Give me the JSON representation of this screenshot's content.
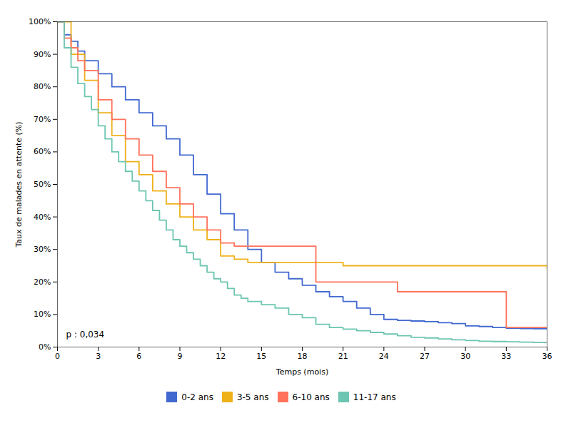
{
  "chart_data": {
    "type": "step",
    "xlabel": "Temps (mois)",
    "ylabel": "Taux de malades en attente (%)",
    "xlim": [
      0,
      36
    ],
    "ylim": [
      0,
      1.0
    ],
    "xticks": [
      0,
      3,
      6,
      9,
      12,
      15,
      18,
      21,
      24,
      27,
      30,
      33,
      36
    ],
    "yticks": [
      {
        "value": 0,
        "label": "0%"
      },
      {
        "value": 0.1,
        "label": "10%"
      },
      {
        "value": 0.2,
        "label": "20%"
      },
      {
        "value": 0.3,
        "label": "30%"
      },
      {
        "value": 0.4,
        "label": "40%"
      },
      {
        "value": 0.5,
        "label": "50%"
      },
      {
        "value": 0.6,
        "label": "60%"
      },
      {
        "value": 0.7,
        "label": "70%"
      },
      {
        "value": 0.8,
        "label": "80%"
      },
      {
        "value": 0.9,
        "label": "90%"
      },
      {
        "value": 1.0,
        "label": "100%"
      }
    ],
    "annotation": "p : 0,034",
    "grid": false,
    "legend": "bottom",
    "series": [
      {
        "name": "0-2 ans",
        "x": [
          0,
          0.5,
          1,
          1.5,
          2,
          3,
          4,
          5,
          6,
          7,
          8,
          9,
          10,
          11,
          12,
          13,
          14,
          15,
          16,
          17,
          18,
          19,
          20,
          21,
          22,
          23,
          24,
          25,
          26,
          27,
          28,
          29,
          30,
          31,
          32,
          33,
          34,
          35,
          36
        ],
        "values": [
          1.0,
          0.96,
          0.94,
          0.91,
          0.88,
          0.84,
          0.8,
          0.76,
          0.72,
          0.68,
          0.64,
          0.59,
          0.53,
          0.47,
          0.41,
          0.36,
          0.3,
          0.26,
          0.23,
          0.21,
          0.19,
          0.17,
          0.155,
          0.14,
          0.12,
          0.1,
          0.085,
          0.082,
          0.08,
          0.078,
          0.075,
          0.072,
          0.065,
          0.063,
          0.06,
          0.058,
          0.057,
          0.056,
          0.055
        ]
      },
      {
        "name": "3-5 ans",
        "x": [
          0,
          1,
          2,
          3,
          4,
          5,
          6,
          7,
          8,
          9,
          10,
          11,
          12,
          13,
          14,
          15,
          16,
          17,
          18,
          19,
          20,
          21,
          22,
          23,
          24,
          36
        ],
        "values": [
          1.0,
          0.9,
          0.82,
          0.72,
          0.65,
          0.57,
          0.53,
          0.48,
          0.44,
          0.4,
          0.36,
          0.33,
          0.28,
          0.27,
          0.26,
          0.26,
          0.26,
          0.26,
          0.26,
          0.26,
          0.26,
          0.25,
          0.25,
          0.25,
          0.25,
          0.24
        ]
      },
      {
        "name": "6-10 ans",
        "x": [
          0,
          0.5,
          1,
          1.5,
          2,
          3,
          4,
          5,
          6,
          7,
          8,
          9,
          10,
          11,
          12,
          13,
          14,
          15,
          16,
          17,
          18,
          19,
          20,
          21,
          22,
          23,
          24,
          25,
          26,
          27,
          28,
          29,
          30,
          31,
          32,
          33,
          34,
          35,
          36
        ],
        "values": [
          1.0,
          0.95,
          0.92,
          0.88,
          0.85,
          0.76,
          0.7,
          0.64,
          0.59,
          0.54,
          0.49,
          0.44,
          0.4,
          0.36,
          0.32,
          0.31,
          0.31,
          0.31,
          0.31,
          0.31,
          0.31,
          0.2,
          0.2,
          0.2,
          0.2,
          0.2,
          0.2,
          0.17,
          0.17,
          0.17,
          0.17,
          0.17,
          0.17,
          0.17,
          0.17,
          0.06,
          0.06,
          0.06,
          0.06
        ]
      },
      {
        "name": "11-17 ans",
        "x": [
          0,
          0.5,
          1,
          1.5,
          2,
          2.5,
          3,
          3.5,
          4,
          4.5,
          5,
          5.5,
          6,
          6.5,
          7,
          7.5,
          8,
          8.5,
          9,
          9.5,
          10,
          10.5,
          11,
          11.5,
          12,
          12.5,
          13,
          13.5,
          14,
          15,
          16,
          17,
          18,
          19,
          20,
          21,
          22,
          23,
          24,
          25,
          26,
          27,
          28,
          29,
          30,
          31,
          32,
          33,
          34,
          35,
          36
        ],
        "values": [
          1.0,
          0.92,
          0.86,
          0.81,
          0.77,
          0.73,
          0.68,
          0.64,
          0.6,
          0.57,
          0.54,
          0.51,
          0.48,
          0.45,
          0.42,
          0.39,
          0.36,
          0.33,
          0.31,
          0.29,
          0.27,
          0.25,
          0.23,
          0.21,
          0.2,
          0.18,
          0.16,
          0.15,
          0.14,
          0.13,
          0.12,
          0.1,
          0.09,
          0.07,
          0.06,
          0.055,
          0.05,
          0.045,
          0.04,
          0.035,
          0.03,
          0.028,
          0.025,
          0.022,
          0.02,
          0.018,
          0.017,
          0.016,
          0.015,
          0.014,
          0.013
        ]
      }
    ]
  }
}
